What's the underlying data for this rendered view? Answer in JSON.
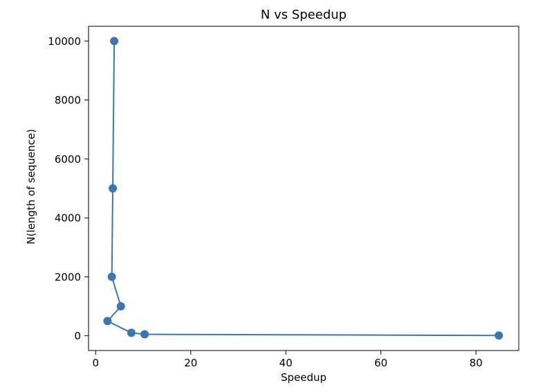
{
  "chart_data": {
    "type": "line",
    "title": "N vs Speedup",
    "xlabel": "Speedup",
    "ylabel": "N(length of sequence)",
    "xlim": [
      -1.5,
      89
    ],
    "ylim": [
      -500,
      10500
    ],
    "xticks": [
      0,
      20,
      40,
      60,
      80
    ],
    "yticks": [
      0,
      2000,
      4000,
      6000,
      8000,
      10000
    ],
    "grid": false,
    "series": [
      {
        "color": "#3d76af",
        "marker": "circle",
        "points": [
          {
            "x": 84.8,
            "y": 10
          },
          {
            "x": 10.3,
            "y": 50
          },
          {
            "x": 7.5,
            "y": 100
          },
          {
            "x": 2.5,
            "y": 500
          },
          {
            "x": 5.3,
            "y": 1000
          },
          {
            "x": 3.4,
            "y": 2000
          },
          {
            "x": 3.6,
            "y": 5000
          },
          {
            "x": 3.9,
            "y": 10000
          }
        ]
      }
    ]
  }
}
